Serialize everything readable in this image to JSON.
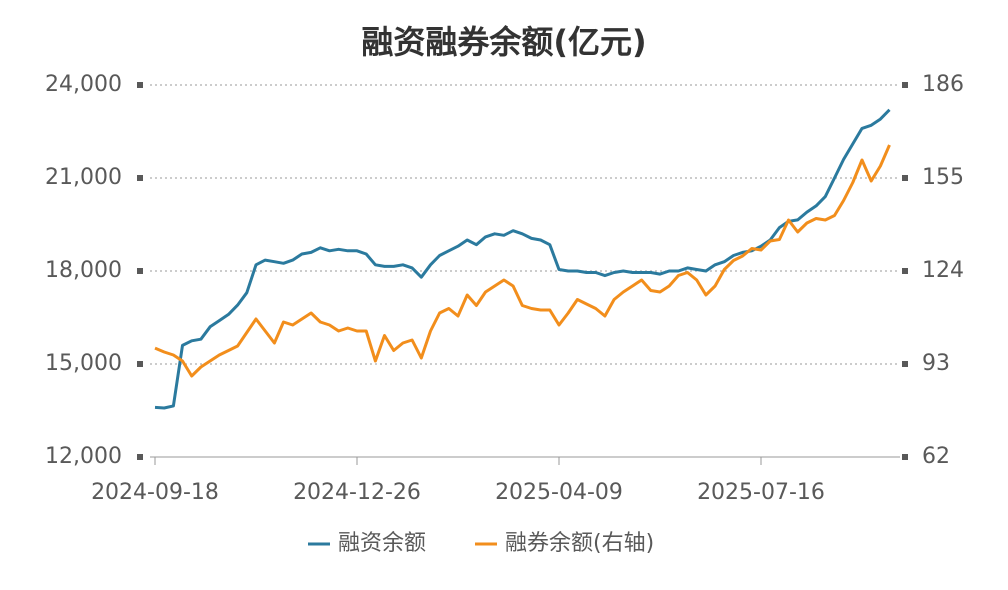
{
  "chart_data": {
    "type": "line",
    "title": "融资融券余额(亿元)",
    "categories": [
      "2024-09-18",
      null,
      null,
      null,
      null,
      null,
      null,
      null,
      null,
      null,
      null,
      null,
      null,
      null,
      null,
      null,
      null,
      null,
      null,
      null,
      null,
      null,
      "2024-12-26",
      null,
      null,
      null,
      null,
      null,
      null,
      null,
      null,
      null,
      null,
      null,
      null,
      null,
      null,
      null,
      null,
      null,
      null,
      null,
      null,
      null,
      "2025-04-09",
      null,
      null,
      null,
      null,
      null,
      null,
      null,
      null,
      null,
      null,
      null,
      null,
      null,
      null,
      null,
      null,
      null,
      null,
      null,
      null,
      null,
      "2025-07-16",
      null,
      null,
      null,
      null,
      null,
      null,
      null,
      null,
      null,
      null,
      null,
      null,
      null,
      null
    ],
    "xticks": [
      0,
      22,
      44,
      66
    ],
    "series": [
      {
        "name": "融资余额",
        "color": "#2b7a9e",
        "values": [
          13600,
          13580,
          13650,
          15600,
          15750,
          15800,
          16200,
          16400,
          16600,
          16900,
          17300,
          18200,
          18350,
          18300,
          18250,
          18350,
          18550,
          18600,
          18750,
          18650,
          18700,
          18650,
          18650,
          18550,
          18200,
          18150,
          18150,
          18200,
          18100,
          17800,
          18200,
          18500,
          18650,
          18800,
          19000,
          18850,
          19100,
          19200,
          19150,
          19300,
          19200,
          19050,
          19000,
          18850,
          18050,
          18000,
          18000,
          17950,
          17950,
          17850,
          17950,
          18000,
          17950,
          17950,
          17950,
          17900,
          18000,
          18000,
          18100,
          18050,
          18000,
          18200,
          18300,
          18500,
          18600,
          18650,
          18800,
          19000,
          19400,
          19600,
          19650,
          19900,
          20100,
          20400,
          21000,
          21600,
          22100,
          22600,
          22700,
          22900,
          23200
        ]
      },
      {
        "name": "融券余额(右轴)",
        "color": "#f28e1c",
        "axis": "y2",
        "values": [
          98.3,
          97,
          96,
          94,
          89,
          92,
          94,
          96,
          97.5,
          99,
          103.5,
          108,
          104,
          100,
          107,
          106,
          108,
          110,
          107,
          106,
          104,
          105,
          104,
          104,
          94,
          102.5,
          97.5,
          100,
          101,
          95,
          104,
          110,
          111.5,
          109,
          116,
          112.5,
          117,
          119,
          121,
          119,
          112.5,
          111.5,
          111,
          111,
          106,
          110,
          114.5,
          113,
          111.5,
          109,
          114.5,
          117,
          119,
          121,
          117.5,
          117,
          119,
          122.5,
          123.5,
          121,
          116,
          119,
          124.5,
          127.5,
          129,
          131.5,
          131,
          134,
          134.5,
          141,
          137,
          140,
          141.5,
          141,
          142.5,
          147.5,
          153.5,
          161,
          154,
          159,
          166
        ]
      }
    ],
    "ylim": [
      12000,
      24000
    ],
    "yticks": [
      {
        "value": 12000,
        "label": "12,000"
      },
      {
        "value": 15000,
        "label": "15,000"
      },
      {
        "value": 18000,
        "label": "18,000"
      },
      {
        "value": 21000,
        "label": "21,000"
      },
      {
        "value": 24000,
        "label": "24,000"
      }
    ],
    "y2lim": [
      62,
      186
    ],
    "y2ticks": [
      62,
      93,
      124,
      155,
      186
    ],
    "grid": true,
    "legend": "bottom"
  }
}
